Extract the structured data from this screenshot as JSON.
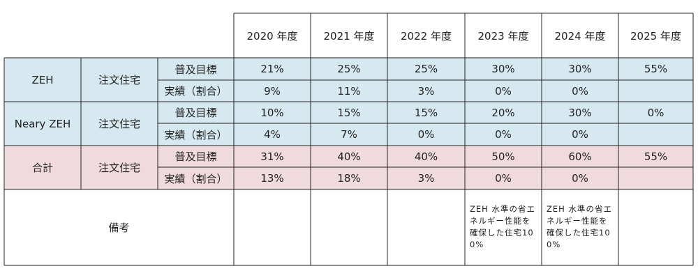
{
  "years": [
    "2020 年度",
    "2021 年度",
    "2022 年度",
    "2023 年度",
    "2024 年度",
    "2025 年度"
  ],
  "groups": [
    {
      "name": "ZEH",
      "type": "注文住宅",
      "tone": "blue",
      "rows": [
        {
          "label": "普及目標",
          "values": [
            "21%",
            "25%",
            "25%",
            "30%",
            "30%",
            "55%"
          ]
        },
        {
          "label": "実績（割合）",
          "values": [
            "9%",
            "11%",
            "3%",
            "0%",
            "0%",
            ""
          ]
        }
      ]
    },
    {
      "name": "Neary ZEH",
      "type": "注文住宅",
      "tone": "blue",
      "rows": [
        {
          "label": "普及目標",
          "values": [
            "10%",
            "15%",
            "15%",
            "20%",
            "30%",
            "0%"
          ]
        },
        {
          "label": "実績（割合）",
          "values": [
            "4%",
            "7%",
            "0%",
            "0%",
            "0%",
            ""
          ]
        }
      ]
    },
    {
      "name": "合計",
      "type": "注文住宅",
      "tone": "pink",
      "rows": [
        {
          "label": "普及目標",
          "values": [
            "31%",
            "40%",
            "40%",
            "50%",
            "60%",
            "55%"
          ]
        },
        {
          "label": "実績（割合）",
          "values": [
            "13%",
            "18%",
            "3%",
            "0%",
            "0%",
            ""
          ]
        }
      ]
    }
  ],
  "remarks": {
    "label": "備考",
    "notes": [
      "",
      "",
      "",
      "ZEH 水準の省エネルギー性能を確保した住宅100%",
      "ZEH 水準の省エネルギー性能を確保した住宅100%",
      ""
    ]
  },
  "colors": {
    "blue_fill": "#d6e9f0",
    "pink_fill": "#f0dadd",
    "border": "#222222"
  }
}
